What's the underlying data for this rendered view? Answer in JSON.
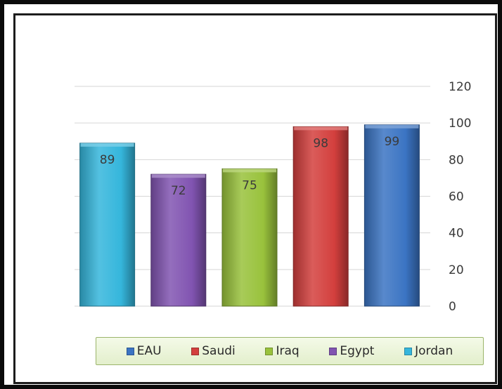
{
  "chart_data": {
    "type": "bar",
    "categories": [
      "Jordan",
      "Egypt",
      "Iraq",
      "Saudi",
      "EAU"
    ],
    "values": [
      89,
      72,
      75,
      98,
      99
    ],
    "data_labels": [
      "89",
      "72",
      "75",
      "98",
      "99"
    ],
    "colors": [
      "#35b6dc",
      "#8154b1",
      "#99c23c",
      "#d33f3d",
      "#3b74c3"
    ],
    "title": "",
    "xlabel": "",
    "ylabel": "",
    "ylim": [
      0,
      120
    ],
    "yticks": [
      "0",
      "20",
      "40",
      "60",
      "80",
      "100",
      "120"
    ],
    "y_axis_position": "right",
    "grid": true,
    "legend_position": "bottom",
    "legend": [
      {
        "label": "EAU",
        "color": "#3b74c3"
      },
      {
        "label": "Saudi",
        "color": "#d33f3d"
      },
      {
        "label": "Iraq",
        "color": "#99c23c"
      },
      {
        "label": "Egypt",
        "color": "#8154b1"
      },
      {
        "label": "Jordan",
        "color": "#35b6dc"
      }
    ]
  }
}
